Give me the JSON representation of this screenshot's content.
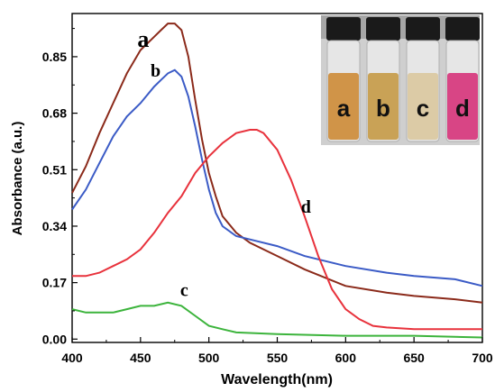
{
  "chart_data": {
    "type": "line",
    "xlabel": "Wavelength(nm)",
    "ylabel": "Absorbance (a.u.)",
    "xlim": [
      400,
      700
    ],
    "ylim": [
      -0.01,
      0.98
    ],
    "x_ticks": [
      400,
      450,
      500,
      550,
      600,
      650,
      700
    ],
    "x_tick_labels": [
      "400",
      "450",
      "500",
      "550",
      "600",
      "650",
      "700"
    ],
    "y_ticks": [
      0.0,
      0.17,
      0.34,
      0.51,
      0.68,
      0.85
    ],
    "y_tick_labels": [
      "0.00",
      "0.17",
      "0.34",
      "0.51",
      "0.68",
      "0.85"
    ],
    "grid": false,
    "series": [
      {
        "name": "a",
        "color": "#8B2A1A",
        "x": [
          400,
          410,
          420,
          430,
          440,
          450,
          460,
          465,
          470,
          475,
          480,
          485,
          490,
          495,
          500,
          505,
          510,
          520,
          530,
          550,
          570,
          600,
          630,
          650,
          680,
          700
        ],
        "y": [
          0.44,
          0.52,
          0.62,
          0.71,
          0.8,
          0.87,
          0.91,
          0.93,
          0.95,
          0.95,
          0.93,
          0.85,
          0.72,
          0.6,
          0.5,
          0.43,
          0.37,
          0.32,
          0.29,
          0.25,
          0.21,
          0.16,
          0.14,
          0.13,
          0.12,
          0.11
        ]
      },
      {
        "name": "b",
        "color": "#3B5BC6",
        "x": [
          400,
          410,
          420,
          430,
          440,
          450,
          460,
          465,
          470,
          475,
          480,
          485,
          490,
          495,
          500,
          505,
          510,
          520,
          530,
          550,
          570,
          600,
          630,
          650,
          680,
          700
        ],
        "y": [
          0.39,
          0.45,
          0.53,
          0.61,
          0.67,
          0.71,
          0.76,
          0.78,
          0.8,
          0.81,
          0.79,
          0.73,
          0.64,
          0.54,
          0.45,
          0.38,
          0.34,
          0.31,
          0.3,
          0.28,
          0.25,
          0.22,
          0.2,
          0.19,
          0.18,
          0.16
        ]
      },
      {
        "name": "c",
        "color": "#3CB43C",
        "x": [
          400,
          410,
          420,
          430,
          440,
          450,
          460,
          470,
          480,
          490,
          500,
          510,
          520,
          550,
          600,
          650,
          700
        ],
        "y": [
          0.09,
          0.08,
          0.08,
          0.08,
          0.09,
          0.1,
          0.1,
          0.11,
          0.1,
          0.07,
          0.04,
          0.03,
          0.02,
          0.015,
          0.01,
          0.01,
          0.005
        ]
      },
      {
        "name": "d",
        "color": "#E8323C",
        "x": [
          400,
          410,
          420,
          430,
          440,
          450,
          460,
          470,
          480,
          490,
          500,
          510,
          520,
          530,
          535,
          540,
          550,
          560,
          570,
          580,
          590,
          600,
          610,
          620,
          630,
          650,
          700
        ],
        "y": [
          0.19,
          0.19,
          0.2,
          0.22,
          0.24,
          0.27,
          0.32,
          0.38,
          0.43,
          0.5,
          0.55,
          0.59,
          0.62,
          0.63,
          0.63,
          0.62,
          0.57,
          0.48,
          0.37,
          0.25,
          0.15,
          0.09,
          0.06,
          0.04,
          0.035,
          0.03,
          0.03
        ]
      }
    ],
    "annotations": [
      {
        "text": "a",
        "x": 452,
        "y": 0.88,
        "color": "#000000",
        "size": "large"
      },
      {
        "text": "b",
        "x": 461,
        "y": 0.79,
        "color": "#000000",
        "size": "medium"
      },
      {
        "text": "c",
        "x": 482,
        "y": 0.13,
        "color": "#000000",
        "size": "medium"
      },
      {
        "text": "d",
        "x": 571,
        "y": 0.38,
        "color": "#000000",
        "size": "medium"
      }
    ]
  },
  "inset": {
    "description_labels": [
      "a",
      "b",
      "c",
      "d"
    ],
    "liquid_colors": [
      "#D09448",
      "#C9A256",
      "#DCCBA6",
      "#D84585"
    ],
    "cap_color": "#1A1A1A",
    "background_color": "#CFCFCF"
  }
}
